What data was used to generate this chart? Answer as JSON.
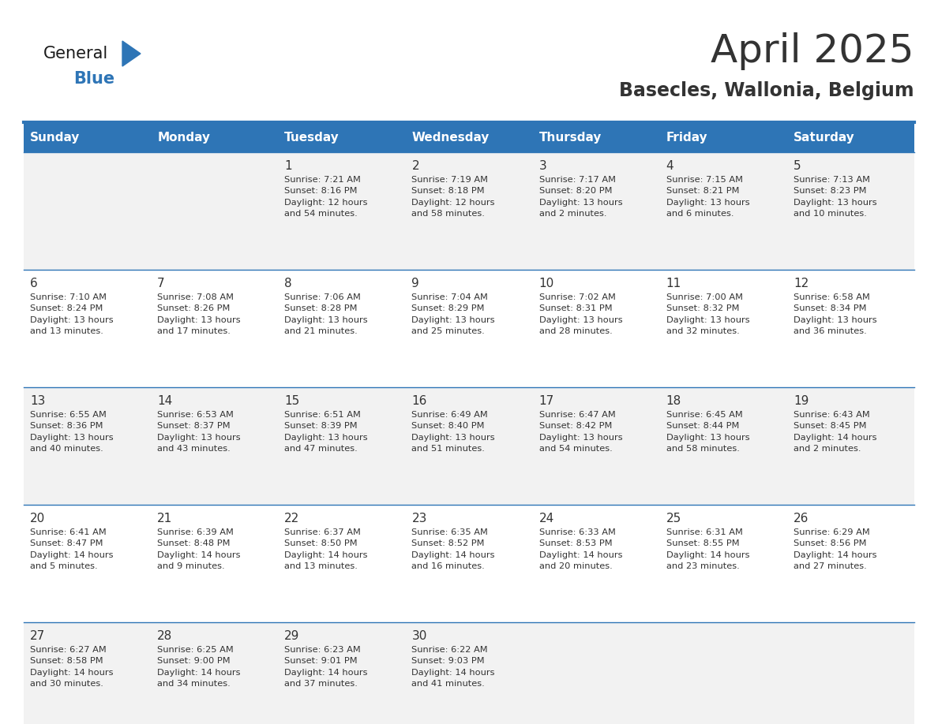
{
  "title": "April 2025",
  "subtitle": "Basecles, Wallonia, Belgium",
  "days_of_week": [
    "Sunday",
    "Monday",
    "Tuesday",
    "Wednesday",
    "Thursday",
    "Friday",
    "Saturday"
  ],
  "header_bg": "#2E75B6",
  "header_text": "#FFFFFF",
  "row_bg": [
    "#F2F2F2",
    "#FFFFFF"
  ],
  "cell_border_color": "#2E75B6",
  "day_num_color": "#333333",
  "cell_text_color": "#333333",
  "title_color": "#333333",
  "subtitle_color": "#333333",
  "logo_general_color": "#1a1a1a",
  "logo_blue_color": "#2E75B6",
  "logo_triangle_color": "#2E75B6",
  "calendar_data": [
    [
      {
        "day": null,
        "text": ""
      },
      {
        "day": null,
        "text": ""
      },
      {
        "day": 1,
        "text": "Sunrise: 7:21 AM\nSunset: 8:16 PM\nDaylight: 12 hours\nand 54 minutes."
      },
      {
        "day": 2,
        "text": "Sunrise: 7:19 AM\nSunset: 8:18 PM\nDaylight: 12 hours\nand 58 minutes."
      },
      {
        "day": 3,
        "text": "Sunrise: 7:17 AM\nSunset: 8:20 PM\nDaylight: 13 hours\nand 2 minutes."
      },
      {
        "day": 4,
        "text": "Sunrise: 7:15 AM\nSunset: 8:21 PM\nDaylight: 13 hours\nand 6 minutes."
      },
      {
        "day": 5,
        "text": "Sunrise: 7:13 AM\nSunset: 8:23 PM\nDaylight: 13 hours\nand 10 minutes."
      }
    ],
    [
      {
        "day": 6,
        "text": "Sunrise: 7:10 AM\nSunset: 8:24 PM\nDaylight: 13 hours\nand 13 minutes."
      },
      {
        "day": 7,
        "text": "Sunrise: 7:08 AM\nSunset: 8:26 PM\nDaylight: 13 hours\nand 17 minutes."
      },
      {
        "day": 8,
        "text": "Sunrise: 7:06 AM\nSunset: 8:28 PM\nDaylight: 13 hours\nand 21 minutes."
      },
      {
        "day": 9,
        "text": "Sunrise: 7:04 AM\nSunset: 8:29 PM\nDaylight: 13 hours\nand 25 minutes."
      },
      {
        "day": 10,
        "text": "Sunrise: 7:02 AM\nSunset: 8:31 PM\nDaylight: 13 hours\nand 28 minutes."
      },
      {
        "day": 11,
        "text": "Sunrise: 7:00 AM\nSunset: 8:32 PM\nDaylight: 13 hours\nand 32 minutes."
      },
      {
        "day": 12,
        "text": "Sunrise: 6:58 AM\nSunset: 8:34 PM\nDaylight: 13 hours\nand 36 minutes."
      }
    ],
    [
      {
        "day": 13,
        "text": "Sunrise: 6:55 AM\nSunset: 8:36 PM\nDaylight: 13 hours\nand 40 minutes."
      },
      {
        "day": 14,
        "text": "Sunrise: 6:53 AM\nSunset: 8:37 PM\nDaylight: 13 hours\nand 43 minutes."
      },
      {
        "day": 15,
        "text": "Sunrise: 6:51 AM\nSunset: 8:39 PM\nDaylight: 13 hours\nand 47 minutes."
      },
      {
        "day": 16,
        "text": "Sunrise: 6:49 AM\nSunset: 8:40 PM\nDaylight: 13 hours\nand 51 minutes."
      },
      {
        "day": 17,
        "text": "Sunrise: 6:47 AM\nSunset: 8:42 PM\nDaylight: 13 hours\nand 54 minutes."
      },
      {
        "day": 18,
        "text": "Sunrise: 6:45 AM\nSunset: 8:44 PM\nDaylight: 13 hours\nand 58 minutes."
      },
      {
        "day": 19,
        "text": "Sunrise: 6:43 AM\nSunset: 8:45 PM\nDaylight: 14 hours\nand 2 minutes."
      }
    ],
    [
      {
        "day": 20,
        "text": "Sunrise: 6:41 AM\nSunset: 8:47 PM\nDaylight: 14 hours\nand 5 minutes."
      },
      {
        "day": 21,
        "text": "Sunrise: 6:39 AM\nSunset: 8:48 PM\nDaylight: 14 hours\nand 9 minutes."
      },
      {
        "day": 22,
        "text": "Sunrise: 6:37 AM\nSunset: 8:50 PM\nDaylight: 14 hours\nand 13 minutes."
      },
      {
        "day": 23,
        "text": "Sunrise: 6:35 AM\nSunset: 8:52 PM\nDaylight: 14 hours\nand 16 minutes."
      },
      {
        "day": 24,
        "text": "Sunrise: 6:33 AM\nSunset: 8:53 PM\nDaylight: 14 hours\nand 20 minutes."
      },
      {
        "day": 25,
        "text": "Sunrise: 6:31 AM\nSunset: 8:55 PM\nDaylight: 14 hours\nand 23 minutes."
      },
      {
        "day": 26,
        "text": "Sunrise: 6:29 AM\nSunset: 8:56 PM\nDaylight: 14 hours\nand 27 minutes."
      }
    ],
    [
      {
        "day": 27,
        "text": "Sunrise: 6:27 AM\nSunset: 8:58 PM\nDaylight: 14 hours\nand 30 minutes."
      },
      {
        "day": 28,
        "text": "Sunrise: 6:25 AM\nSunset: 9:00 PM\nDaylight: 14 hours\nand 34 minutes."
      },
      {
        "day": 29,
        "text": "Sunrise: 6:23 AM\nSunset: 9:01 PM\nDaylight: 14 hours\nand 37 minutes."
      },
      {
        "day": 30,
        "text": "Sunrise: 6:22 AM\nSunset: 9:03 PM\nDaylight: 14 hours\nand 41 minutes."
      },
      {
        "day": null,
        "text": ""
      },
      {
        "day": null,
        "text": ""
      },
      {
        "day": null,
        "text": ""
      }
    ]
  ]
}
